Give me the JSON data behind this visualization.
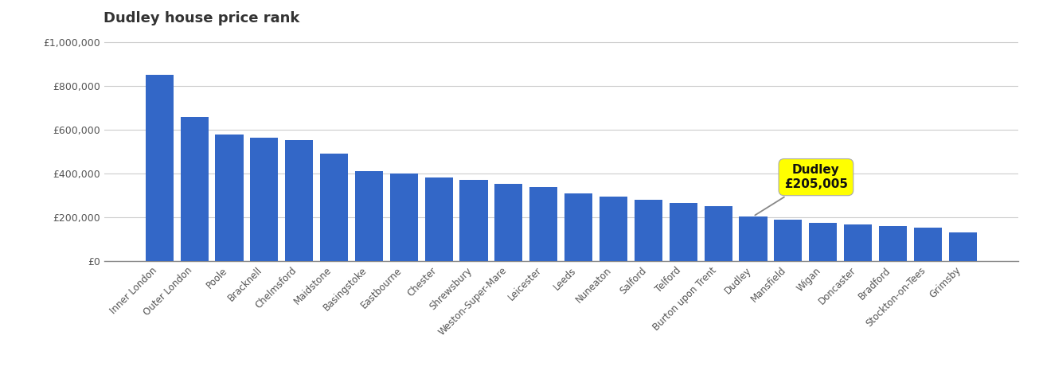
{
  "title": "Dudley house price rank",
  "categories": [
    "Inner London",
    "Outer London",
    "Poole",
    "Bracknell",
    "Chelmsford",
    "Maidstone",
    "Basingstoke",
    "Eastbourne",
    "Chester",
    "Shrewsbury",
    "Weston-Super-Mare",
    "Leicester",
    "Leeds",
    "Nuneaton",
    "Salford",
    "Telford",
    "Burton upon Trent",
    "Dudley",
    "Mansfield",
    "Wigan",
    "Doncaster",
    "Bradford",
    "Stockton-on-Tees",
    "Grimsby"
  ],
  "values": [
    850000,
    660000,
    580000,
    563000,
    553000,
    490000,
    410000,
    400000,
    383000,
    370000,
    355000,
    340000,
    310000,
    295000,
    280000,
    268000,
    250000,
    205005,
    190000,
    175000,
    168000,
    162000,
    152000,
    133000
  ],
  "dudley_index": 17,
  "bar_color": "#3367c7",
  "annotation_bg": "#ffff00",
  "annotation_text": "Dudley\n£205,005",
  "annotation_text_color": "#111111",
  "background_color": "#ffffff",
  "grid_color": "#cccccc",
  "tick_color": "#555555",
  "title_color": "#333333",
  "ylim_max": 1050000,
  "ytick_step": 200000
}
